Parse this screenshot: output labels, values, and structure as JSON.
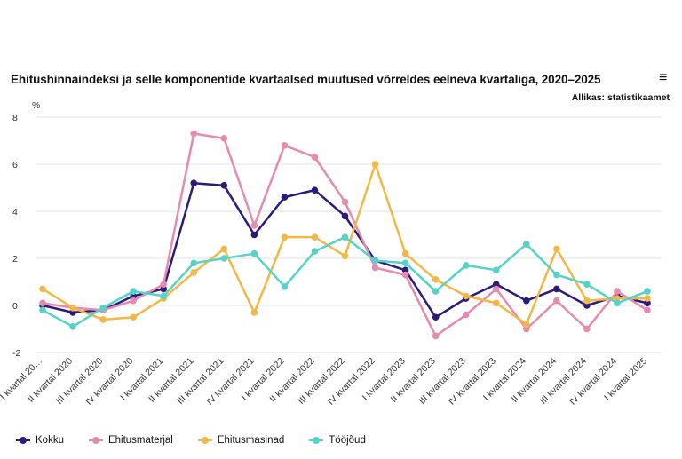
{
  "header": {
    "title": "Ehitushinnaindeksi ja selle komponentide kvartaalsed muutused võrreldes eelneva kvartaliga, 2020–2025",
    "source": "Allikas: statistikaamet",
    "menu_icon": "hamburger-menu-icon"
  },
  "chart_data": {
    "type": "line",
    "title": "Ehitushinnaindeksi ja selle komponentide kvartaalsed muutused võrreldes eelneva kvartaliga, 2020–2025",
    "xlabel": "",
    "ylabel": "%",
    "ylim": [
      -2,
      8
    ],
    "yticks": [
      -2,
      0,
      2,
      4,
      6,
      8
    ],
    "grid": true,
    "legend_position": "bottom-left",
    "categories": [
      "I kvartal 20…",
      "II kvartal 2020",
      "III kvartal 2020",
      "IV kvartal 2020",
      "I kvartal 2021",
      "II kvartal 2021",
      "III kvartal 2021",
      "IV kvartal 2021",
      "I kvartal 2022",
      "II kvartal 2022",
      "III kvartal 2022",
      "IV kvartal 2022",
      "I kvartal 2023",
      "II kvartal 2023",
      "III kvartal 2023",
      "IV kvartal 2023",
      "I kvartal 2024",
      "II kvartal 2024",
      "III kvartal 2024",
      "IV kvartal 2024",
      "I kvartal 2025"
    ],
    "series": [
      {
        "name": "Kokku",
        "color": "#2e1a7a",
        "values": [
          0.0,
          -0.3,
          -0.2,
          0.4,
          0.7,
          5.2,
          5.1,
          3.0,
          4.6,
          4.9,
          3.8,
          1.9,
          1.5,
          -0.5,
          0.3,
          0.9,
          0.2,
          0.7,
          0.0,
          0.4,
          0.1
        ]
      },
      {
        "name": "Ehitusmaterjal",
        "color": "#e68ab0",
        "values": [
          0.1,
          -0.1,
          -0.2,
          0.2,
          0.9,
          7.3,
          7.1,
          3.4,
          6.8,
          6.3,
          4.4,
          1.6,
          1.3,
          -1.3,
          -0.4,
          0.7,
          -1.0,
          0.2,
          -1.0,
          0.6,
          -0.2
        ]
      },
      {
        "name": "Ehitusmasinad",
        "color": "#f2b846",
        "values": [
          0.7,
          -0.1,
          -0.6,
          -0.5,
          0.3,
          1.4,
          2.4,
          -0.3,
          2.9,
          2.9,
          2.1,
          6.0,
          2.2,
          1.1,
          0.4,
          0.1,
          -0.8,
          2.4,
          0.2,
          0.3,
          0.3
        ]
      },
      {
        "name": "Tööjõud",
        "color": "#56d3c7",
        "values": [
          -0.2,
          -0.9,
          -0.1,
          0.6,
          0.4,
          1.8,
          2.0,
          2.2,
          0.8,
          2.3,
          2.9,
          1.9,
          1.8,
          0.6,
          1.7,
          1.5,
          2.6,
          1.3,
          0.9,
          0.1,
          0.6
        ]
      }
    ]
  }
}
